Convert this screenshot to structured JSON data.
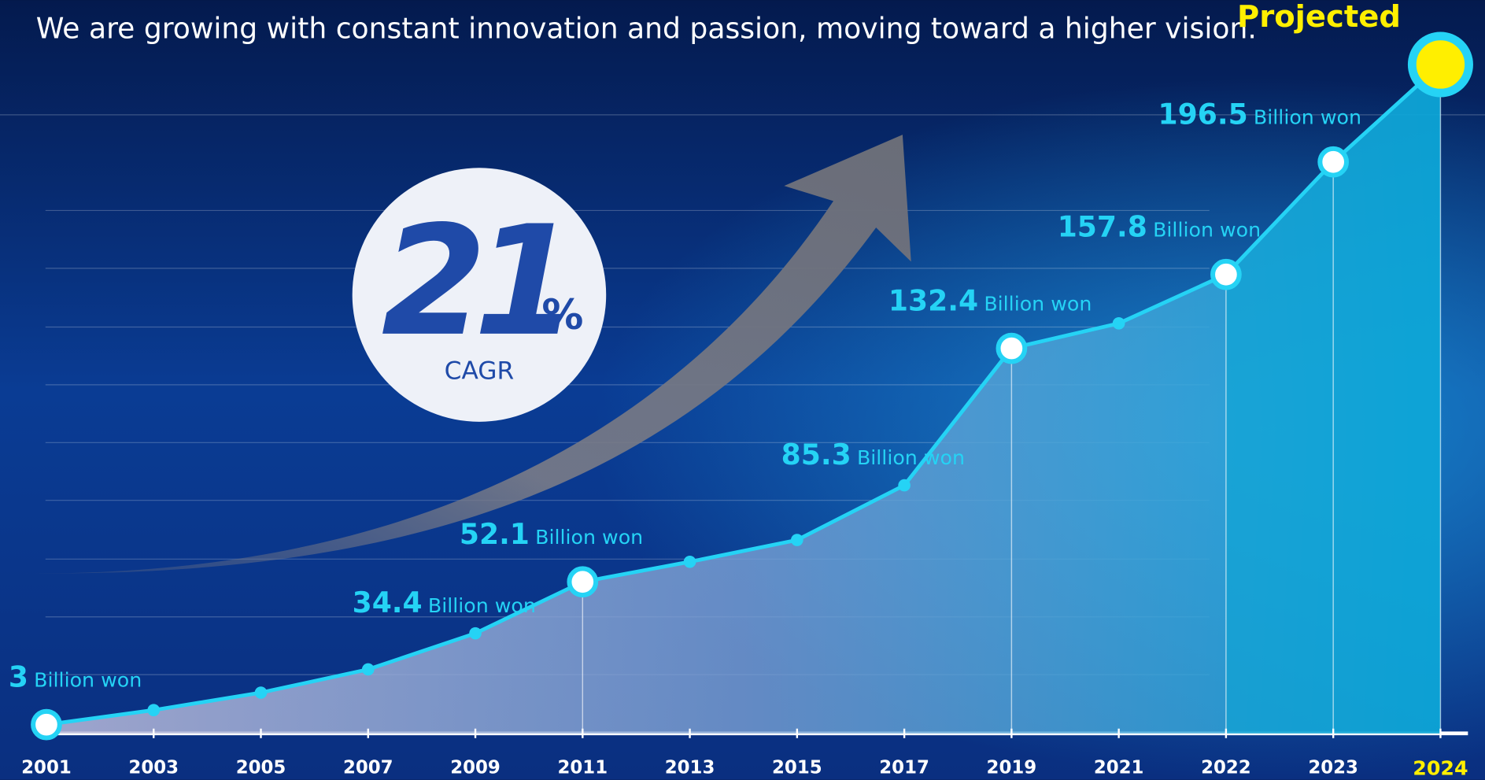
{
  "headline": "We are growing with constant innovation and passion, moving toward a higher vision.",
  "cagr": {
    "value": 21,
    "unit": "%",
    "label": "CAGR"
  },
  "chart_data": {
    "type": "line",
    "categories": [
      "2001",
      "2003",
      "2005",
      "2007",
      "2009",
      "2011",
      "2013",
      "2015",
      "2017",
      "2019",
      "2021",
      "2022",
      "2023",
      "2024"
    ],
    "values": [
      3,
      8,
      14,
      22,
      34.4,
      52.1,
      59,
      66.5,
      85.3,
      132.4,
      141,
      157.8,
      196.5,
      230
    ],
    "unit": "Billion won",
    "show_label": [
      true,
      false,
      false,
      false,
      true,
      true,
      false,
      false,
      true,
      true,
      false,
      true,
      true,
      false
    ],
    "highlight": [
      true,
      false,
      false,
      false,
      false,
      true,
      false,
      false,
      false,
      true,
      false,
      true,
      true,
      true
    ],
    "annotation": "Projected",
    "color": "#25d3f5",
    "projected_color": "#ffef00",
    "ylim": [
      0,
      250
    ]
  }
}
